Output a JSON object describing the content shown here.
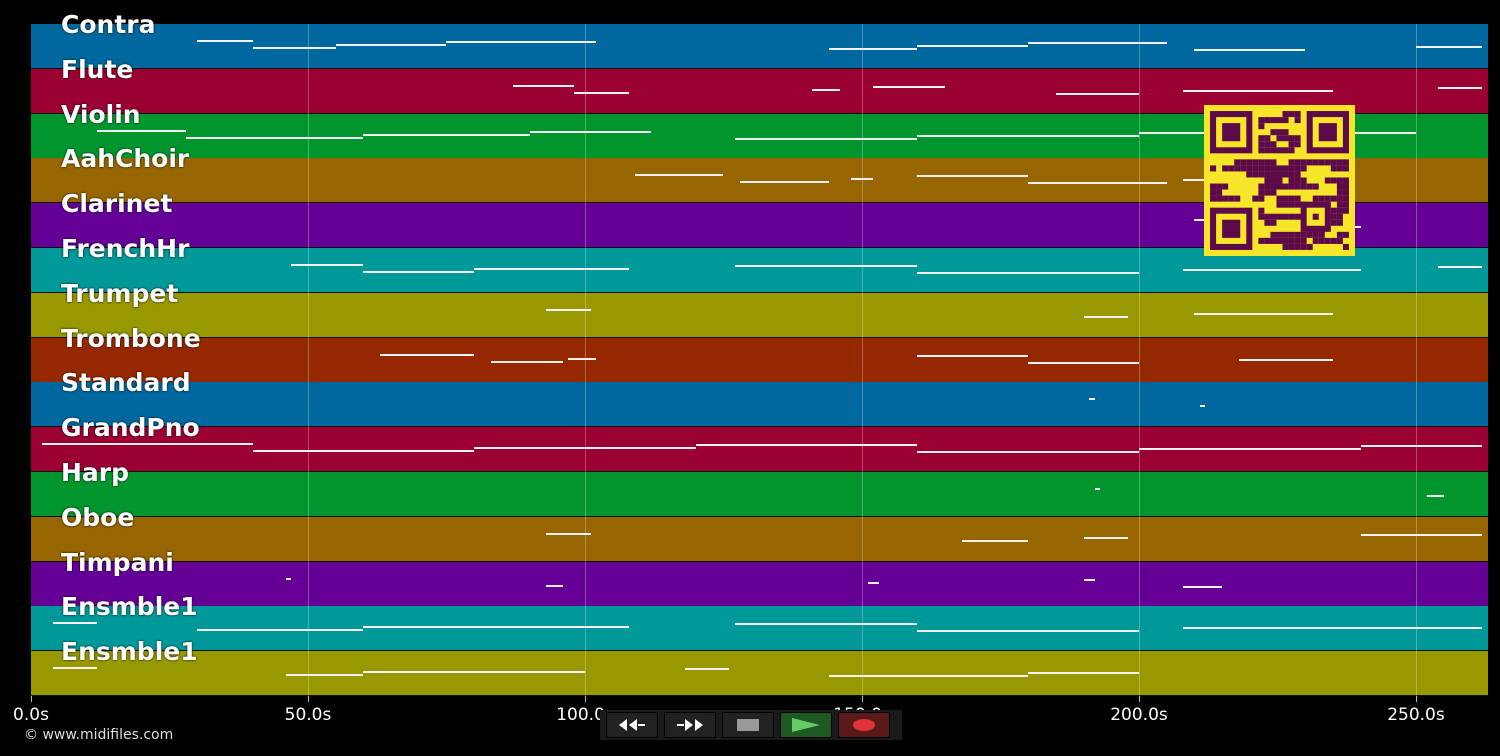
{
  "tracks": [
    {
      "name": "Contra",
      "color": "#00679f"
    },
    {
      "name": "Flute",
      "color": "#9b0033"
    },
    {
      "name": "Violin",
      "color": "#00962d"
    },
    {
      "name": "AahChoir",
      "color": "#976600"
    },
    {
      "name": "Clarinet",
      "color": "#640096"
    },
    {
      "name": "FrenchHr",
      "color": "#009898"
    },
    {
      "name": "Trumpet",
      "color": "#989800"
    },
    {
      "name": "Trombone",
      "color": "#962800"
    },
    {
      "name": "Standard",
      "color": "#00679f"
    },
    {
      "name": "GrandPno",
      "color": "#9b0033"
    },
    {
      "name": "Harp",
      "color": "#00962d"
    },
    {
      "name": "Oboe",
      "color": "#976600"
    },
    {
      "name": "Timpani",
      "color": "#640096"
    },
    {
      "name": "Ensmble1",
      "color": "#009898"
    },
    {
      "name": "Ensmble1",
      "color": "#989800"
    }
  ],
  "time_axis": {
    "max_seconds": 263,
    "ticks": [
      {
        "value": 0,
        "label": "0.0s"
      },
      {
        "value": 50,
        "label": "50.0s"
      },
      {
        "value": 100,
        "label": "100.0s"
      },
      {
        "value": 150,
        "label": "150.0s"
      },
      {
        "value": 200,
        "label": "200.0s"
      },
      {
        "value": 250,
        "label": "250.0s"
      }
    ]
  },
  "notes": [
    [
      [
        30,
        40
      ],
      [
        40,
        55
      ],
      [
        55,
        75
      ],
      [
        75,
        102
      ],
      [
        144,
        160
      ],
      [
        160,
        180
      ],
      [
        180,
        205
      ],
      [
        210,
        230
      ],
      [
        250,
        262
      ]
    ],
    [
      [
        87,
        98
      ],
      [
        98,
        108
      ],
      [
        141,
        146
      ],
      [
        152,
        165
      ],
      [
        185,
        200
      ],
      [
        208,
        235
      ],
      [
        254,
        262
      ]
    ],
    [
      [
        12,
        28
      ],
      [
        28,
        60
      ],
      [
        60,
        90
      ],
      [
        90,
        112
      ],
      [
        127,
        160
      ],
      [
        160,
        200
      ],
      [
        200,
        250
      ]
    ],
    [
      [
        109,
        125
      ],
      [
        128,
        144
      ],
      [
        148,
        152
      ],
      [
        160,
        180
      ],
      [
        180,
        205
      ],
      [
        208,
        232
      ]
    ],
    [
      [
        210,
        218
      ],
      [
        225,
        240
      ]
    ],
    [
      [
        47,
        60
      ],
      [
        60,
        80
      ],
      [
        80,
        108
      ],
      [
        127,
        160
      ],
      [
        160,
        200
      ],
      [
        208,
        240
      ],
      [
        254,
        262
      ]
    ],
    [
      [
        93,
        101
      ],
      [
        190,
        198
      ],
      [
        210,
        235
      ]
    ],
    [
      [
        63,
        80
      ],
      [
        83,
        96
      ],
      [
        97,
        102
      ],
      [
        160,
        180
      ],
      [
        180,
        200
      ],
      [
        218,
        235
      ]
    ],
    [
      [
        191,
        192
      ],
      [
        211,
        212
      ]
    ],
    [
      [
        2,
        40
      ],
      [
        40,
        80
      ],
      [
        80,
        120
      ],
      [
        120,
        160
      ],
      [
        160,
        200
      ],
      [
        200,
        240
      ],
      [
        240,
        262
      ]
    ],
    [
      [
        192,
        193
      ],
      [
        252,
        255
      ]
    ],
    [
      [
        93,
        101
      ],
      [
        168,
        180
      ],
      [
        190,
        198
      ],
      [
        240,
        262
      ]
    ],
    [
      [
        46,
        47
      ],
      [
        93,
        96
      ],
      [
        151,
        153
      ],
      [
        190,
        192
      ],
      [
        208,
        215
      ]
    ],
    [
      [
        4,
        12
      ],
      [
        30,
        60
      ],
      [
        60,
        108
      ],
      [
        127,
        160
      ],
      [
        160,
        200
      ],
      [
        208,
        262
      ]
    ],
    [
      [
        4,
        12
      ],
      [
        46,
        60
      ],
      [
        60,
        100
      ],
      [
        118,
        126
      ],
      [
        144,
        180
      ],
      [
        180,
        200
      ]
    ]
  ],
  "copyright": "© www.midifiles.com",
  "transport": {
    "rewind_icon": "rewind-icon",
    "fast_forward_icon": "fast-forward-icon",
    "stop_icon": "stop-icon",
    "play_icon": "play-icon",
    "record_icon": "record-icon"
  },
  "qr_color": "#f7e52a",
  "qr_dot_color": "#5c0a4a"
}
